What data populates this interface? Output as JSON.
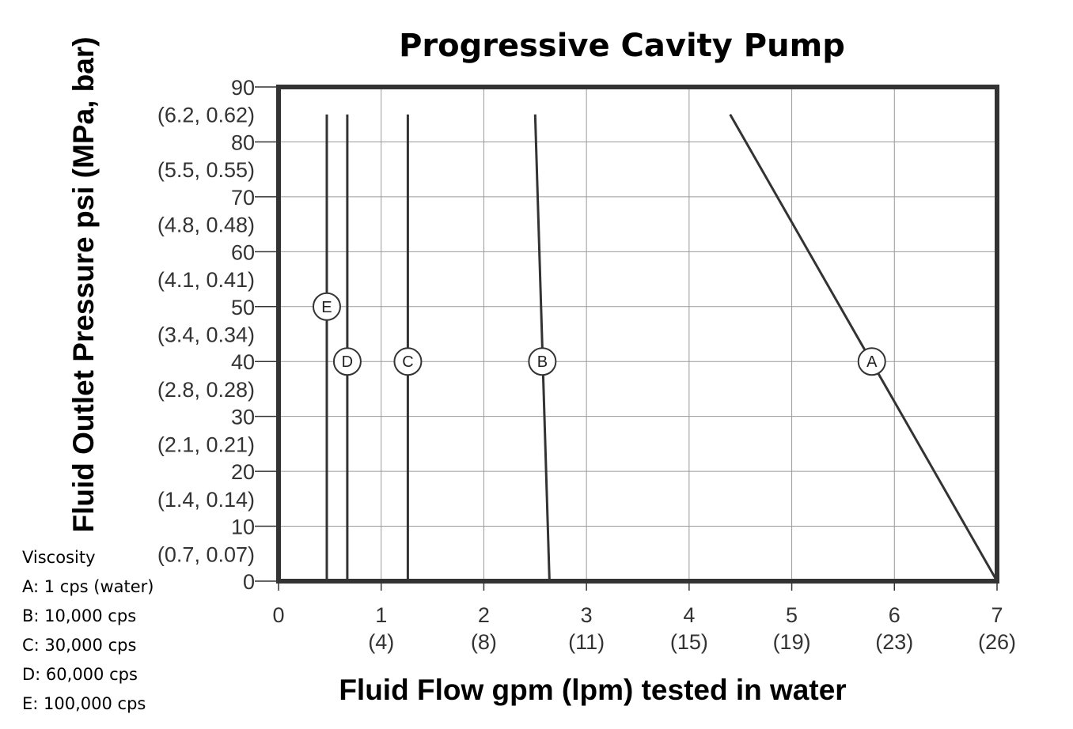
{
  "chart_data": {
    "type": "line",
    "title": "Progressive Cavity Pump",
    "xlabel": "Fluid Flow gpm (lpm) tested in water",
    "ylabel": "Fluid Outlet Pressure psi (MPa, bar)",
    "xlim": [
      0,
      7
    ],
    "ylim": [
      0,
      90
    ],
    "grid": true,
    "x_ticks": [
      {
        "value": 0,
        "label": "0",
        "sub": ""
      },
      {
        "value": 1,
        "label": "1",
        "sub": "(4)"
      },
      {
        "value": 2,
        "label": "2",
        "sub": "(8)"
      },
      {
        "value": 3,
        "label": "3",
        "sub": "(11)"
      },
      {
        "value": 4,
        "label": "4",
        "sub": "(15)"
      },
      {
        "value": 5,
        "label": "5",
        "sub": "(19)"
      },
      {
        "value": 6,
        "label": "6",
        "sub": "(23)"
      },
      {
        "value": 7,
        "label": "7",
        "sub": "(26)"
      }
    ],
    "y_ticks": [
      {
        "value": 0,
        "label": "0"
      },
      {
        "value": 10,
        "label": "10"
      },
      {
        "value": 20,
        "label": "20"
      },
      {
        "value": 30,
        "label": "30"
      },
      {
        "value": 40,
        "label": "40"
      },
      {
        "value": 50,
        "label": "50"
      },
      {
        "value": 60,
        "label": "60"
      },
      {
        "value": 70,
        "label": "70"
      },
      {
        "value": 80,
        "label": "80"
      },
      {
        "value": 90,
        "label": "90"
      }
    ],
    "y_sub_ticks": [
      {
        "value": 5,
        "label": "(0.7, 0.07)"
      },
      {
        "value": 15,
        "label": "(1.4, 0.14)"
      },
      {
        "value": 25,
        "label": "(2.1, 0.21)"
      },
      {
        "value": 35,
        "label": "(2.8, 0.28)"
      },
      {
        "value": 45,
        "label": "(3.4, 0.34)"
      },
      {
        "value": 55,
        "label": "(4.1, 0.41)"
      },
      {
        "value": 65,
        "label": "(4.8, 0.48)"
      },
      {
        "value": 75,
        "label": "(5.5, 0.55)"
      },
      {
        "value": 85,
        "label": "(6.2, 0.62)"
      }
    ],
    "series": [
      {
        "name": "A",
        "x": [
          4.4,
          7.0
        ],
        "y": [
          85,
          0
        ],
        "marker_x": 5.78,
        "marker_y": 40
      },
      {
        "name": "B",
        "x": [
          2.5,
          2.64
        ],
        "y": [
          85,
          0
        ],
        "marker_x": 2.57,
        "marker_y": 40
      },
      {
        "name": "C",
        "x": [
          1.26,
          1.26
        ],
        "y": [
          85,
          0
        ],
        "marker_x": 1.26,
        "marker_y": 40
      },
      {
        "name": "D",
        "x": [
          0.67,
          0.67
        ],
        "y": [
          85,
          0
        ],
        "marker_x": 0.67,
        "marker_y": 40
      },
      {
        "name": "E",
        "x": [
          0.47,
          0.47
        ],
        "y": [
          85,
          0
        ],
        "marker_x": 0.47,
        "marker_y": 50
      }
    ]
  },
  "legend": {
    "title": "Viscosity",
    "items": [
      "A: 1 cps (water)",
      "B: 10,000 cps",
      "C: 30,000 cps",
      "D: 60,000 cps",
      "E: 100,000 cps"
    ]
  },
  "colors": {
    "frame": "#333333",
    "grid": "#9a9a9a",
    "line": "#333333"
  }
}
